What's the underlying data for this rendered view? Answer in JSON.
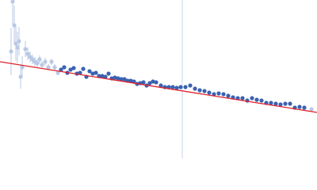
{
  "chart_data": {
    "type": "scatter",
    "xlim": [
      0,
      400
    ],
    "ylim": [
      0,
      200
    ],
    "vline": {
      "x": 230,
      "color": "#c9d5ea"
    },
    "fit": {
      "x": [
        0,
        400
      ],
      "values": [
        122,
        58
      ],
      "color": "#e0202a"
    },
    "series": [
      {
        "color": "#b9c9e5",
        "x": [
          14,
          16,
          18,
          20,
          22,
          24,
          26,
          28,
          32,
          35,
          38,
          41,
          44,
          47,
          50,
          53,
          57,
          61,
          65,
          69,
          73,
          393
        ],
        "values": [
          135,
          198,
          168,
          145,
          140,
          148,
          103,
          115,
          138,
          132,
          128,
          125,
          122,
          120,
          125,
          118,
          122,
          115,
          122,
          115,
          108,
          62
        ],
        "errors": [
          30,
          30,
          25,
          22,
          20,
          18,
          15,
          14,
          10,
          8,
          7,
          6,
          6,
          5,
          5,
          5,
          5,
          4,
          4,
          4,
          3,
          2
        ]
      },
      {
        "color": "#3a62b0",
        "x": [
          77,
          81,
          85,
          89,
          93,
          97,
          101,
          105,
          109,
          113,
          117,
          121,
          125,
          129,
          133,
          137,
          141,
          145,
          149,
          153,
          157,
          161,
          165,
          169,
          173,
          177,
          181,
          185,
          189,
          193,
          197,
          203,
          208,
          213,
          218,
          223,
          228,
          234,
          240,
          246,
          252,
          258,
          264,
          270,
          276,
          282,
          288,
          294,
          300,
          306,
          312,
          318,
          324,
          330,
          336,
          342,
          348,
          354,
          360,
          366,
          372,
          378,
          384
        ],
        "values": [
          112,
          115,
          108,
          112,
          114,
          107,
          108,
          113,
          103,
          110,
          107,
          108,
          104,
          104,
          103,
          107,
          101,
          102,
          101,
          100,
          100,
          98,
          98,
          97,
          94,
          95,
          96,
          92,
          95,
          97,
          96,
          92,
          90,
          90,
          90,
          89,
          90,
          90,
          92,
          88,
          86,
          85,
          83,
          81,
          82,
          81,
          79,
          77,
          76,
          76,
          73,
          76,
          74,
          73,
          70,
          70,
          69,
          68,
          69,
          69,
          64,
          65,
          64
        ]
      }
    ]
  }
}
